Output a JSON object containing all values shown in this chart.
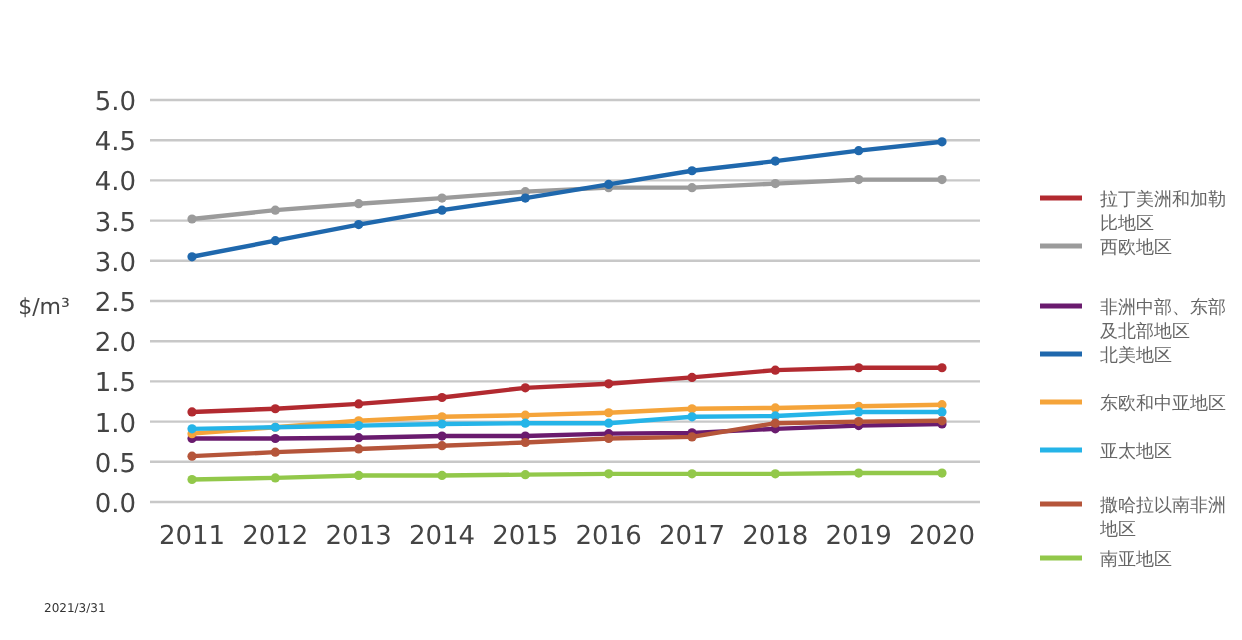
{
  "chart_data": {
    "type": "line",
    "ylabel": "$/m³",
    "categories": [
      "2011",
      "2012",
      "2013",
      "2014",
      "2015",
      "2016",
      "2017",
      "2018",
      "2019",
      "2020"
    ],
    "ylim": [
      0,
      5
    ],
    "yticks": [
      {
        "value": 0,
        "label": "0.0"
      },
      {
        "value": 0.5,
        "label": "0.5"
      },
      {
        "value": 1,
        "label": "1.0"
      },
      {
        "value": 1.5,
        "label": "1.5"
      },
      {
        "value": 2,
        "label": "2.0"
      },
      {
        "value": 2.5,
        "label": "2.5"
      },
      {
        "value": 3,
        "label": "3.0"
      },
      {
        "value": 3.5,
        "label": "3.5"
      },
      {
        "value": 4,
        "label": "4.0"
      },
      {
        "value": 4.5,
        "label": "4.5"
      },
      {
        "value": 5,
        "label": "5.0"
      }
    ],
    "grid": "y",
    "legend": "right",
    "marker": "circle",
    "series": [
      {
        "name": "拉丁美洲和加勒比地区",
        "color": "#b22a30",
        "values": [
          1.12,
          1.16,
          1.22,
          1.3,
          1.42,
          1.47,
          1.55,
          1.64,
          1.67,
          1.67
        ]
      },
      {
        "name": "西欧地区",
        "color": "#9b9b9b",
        "values": [
          3.52,
          3.63,
          3.71,
          3.78,
          3.86,
          3.91,
          3.91,
          3.96,
          4.01,
          4.01
        ]
      },
      {
        "name": "非洲中部、东部及北部地区",
        "color": "#6a1b6e",
        "values": [
          0.79,
          0.79,
          0.8,
          0.82,
          0.82,
          0.85,
          0.86,
          0.91,
          0.95,
          0.97
        ]
      },
      {
        "name": "北美地区",
        "color": "#1f68ad",
        "values": [
          3.05,
          3.25,
          3.45,
          3.63,
          3.78,
          3.95,
          4.12,
          4.24,
          4.37,
          4.48
        ]
      },
      {
        "name": "东欧和中亚地区",
        "color": "#f5a43a",
        "values": [
          0.85,
          0.93,
          1.01,
          1.06,
          1.08,
          1.11,
          1.16,
          1.17,
          1.19,
          1.21
        ]
      },
      {
        "name": "亚太地区",
        "color": "#25b4e8",
        "values": [
          0.91,
          0.93,
          0.95,
          0.97,
          0.98,
          0.98,
          1.06,
          1.07,
          1.12,
          1.12
        ]
      },
      {
        "name": "撒哈拉以南非洲地区",
        "color": "#b5553a",
        "values": [
          0.57,
          0.62,
          0.66,
          0.7,
          0.74,
          0.79,
          0.81,
          0.98,
          1.0,
          1.01
        ]
      },
      {
        "name": "南亚地区",
        "color": "#92c84a",
        "values": [
          0.28,
          0.3,
          0.33,
          0.33,
          0.34,
          0.35,
          0.35,
          0.35,
          0.36,
          0.36
        ]
      }
    ],
    "annotations": [
      "2021/3/31"
    ]
  }
}
